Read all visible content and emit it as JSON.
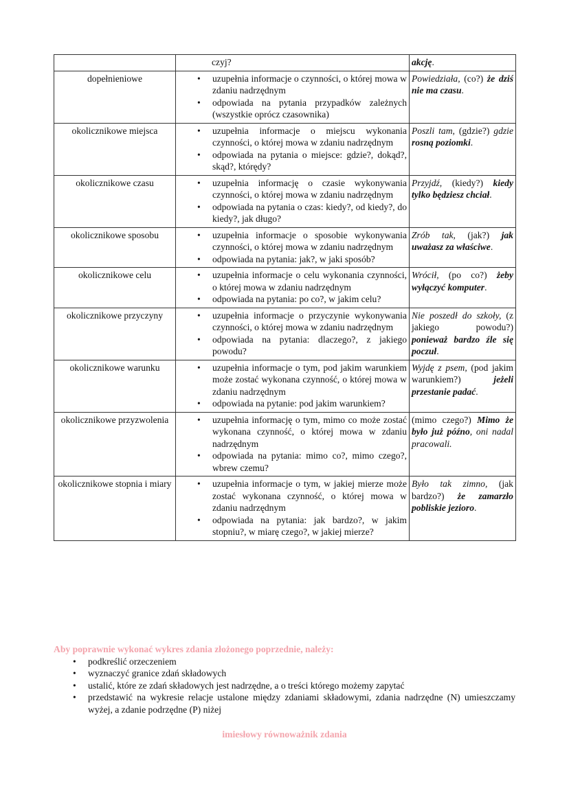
{
  "table": {
    "first_row": {
      "desc": "czyj?",
      "example": [
        {
          "t": "akcję",
          "s": "bi"
        },
        {
          "t": ".",
          "s": "n"
        }
      ]
    },
    "rows": [
      {
        "type": "dopełnieniowe",
        "bullets": [
          "uzupełnia informacje o czynności, o której mowa w zdaniu nadrzędnym",
          "odpowiada na pytania przypadków zależnych (wszystkie oprócz czasownika)"
        ],
        "example": [
          {
            "t": "Powiedziała,",
            "s": "i"
          },
          {
            "t": " (co?) ",
            "s": "n"
          },
          {
            "t": "że dziś nie ma czasu",
            "s": "bi"
          },
          {
            "t": ".",
            "s": "n"
          }
        ]
      },
      {
        "type": "okolicznikowe miejsca",
        "bullets": [
          "uzupełnia informacje o miejscu wykonania czynności, o której mowa w zdaniu nadrzędnym",
          "odpowiada na pytania o miejsce: gdzie?, dokąd?, skąd?, którędy?"
        ],
        "example": [
          {
            "t": "Poszli tam,",
            "s": "i"
          },
          {
            "t": " (gdzie?) ",
            "s": "n"
          },
          {
            "t": "gdzie ",
            "s": "i"
          },
          {
            "t": "rosną poziomki",
            "s": "bi"
          },
          {
            "t": ".",
            "s": "n"
          }
        ]
      },
      {
        "type": "okolicznikowe czasu",
        "bullets": [
          "uzupełnia informację o czasie wykonywania czynności, o której mowa w zdaniu nadrzędnym",
          "odpowiada na pytania o czas: kiedy?, od kiedy?, do kiedy?, jak długo?"
        ],
        "example": [
          {
            "t": "Przyjdź,",
            "s": "i"
          },
          {
            "t": " (kiedy?) ",
            "s": "n"
          },
          {
            "t": "kiedy tylko będziesz chciał",
            "s": "bi"
          },
          {
            "t": ".",
            "s": "n"
          }
        ]
      },
      {
        "type": "okolicznikowe sposobu",
        "bullets": [
          "uzupełnia informacje o sposobie wykonywania czynności, o której mowa w zdaniu nadrzędnym",
          "odpowiada na pytania: jak?, w jaki sposób?"
        ],
        "example": [
          {
            "t": "Zrób tak,",
            "s": "i"
          },
          {
            "t": " (jak?) ",
            "s": "n"
          },
          {
            "t": "jak uważasz za właściwe",
            "s": "bi"
          },
          {
            "t": ".",
            "s": "n"
          }
        ]
      },
      {
        "type": "okolicznikowe celu",
        "bullets": [
          "uzupełnia informacje o celu wykonania czynności, o której mowa w zdaniu nadrzędnym",
          "odpowiada na pytania: po co?, w jakim celu?"
        ],
        "example": [
          {
            "t": "Wrócił,",
            "s": "i"
          },
          {
            "t": " (po co?) ",
            "s": "n"
          },
          {
            "t": "żeby wyłączyć komputer",
            "s": "bi"
          },
          {
            "t": ".",
            "s": "n"
          }
        ]
      },
      {
        "type": "okolicznikowe przyczyny",
        "bullets": [
          "uzupełnia informacje o przyczynie wykonywania czynności, o której mowa w zdaniu nadrzędnym",
          "odpowiada na pytania: dlaczego?, z jakiego powodu?"
        ],
        "example": [
          {
            "t": "Nie poszedł do szkoły,",
            "s": "i"
          },
          {
            "t": " (z jakiego powodu?) ",
            "s": "n"
          },
          {
            "t": "ponieważ bardzo źle się poczuł",
            "s": "bi"
          },
          {
            "t": ".",
            "s": "n"
          }
        ]
      },
      {
        "type": "okolicznikowe warunku",
        "bullets": [
          "uzupełnia informacje o tym, pod jakim warunkiem może zostać wykonana czynność, o której mowa w zdaniu nadrzędnym",
          "odpowiada na pytanie: pod jakim warunkiem?"
        ],
        "example": [
          {
            "t": "Wyjdę z psem,",
            "s": "i"
          },
          {
            "t": " (pod jakim warunkiem?) ",
            "s": "n"
          },
          {
            "t": "jeżeli przestanie padać",
            "s": "bi"
          },
          {
            "t": ".",
            "s": "n"
          }
        ]
      },
      {
        "type": "okolicznikowe przyzwolenia",
        "bullets": [
          "uzupełnia informację o tym, mimo co może zostać wykonana czynność, o której mowa w zdaniu nadrzędnym",
          "odpowiada na pytania: mimo co?, mimo czego?, wbrew czemu?"
        ],
        "example": [
          {
            "t": "(mimo czego?) ",
            "s": "n"
          },
          {
            "t": "Mimo że było już późno",
            "s": "bi"
          },
          {
            "t": ", oni nadal pracowali.",
            "s": "i"
          }
        ]
      },
      {
        "type": "okolicznikowe stopnia i miary",
        "bullets": [
          "uzupełnia informacje o tym, w jakiej mierze może zostać wykonana czynność, o której mowa w zdaniu nadrzędnym",
          "odpowiada na pytania: jak bardzo?, w jakim stopniu?, w miarę czego?, w jakiej mierze?"
        ],
        "example": [
          {
            "t": "Było tak zimno,",
            "s": "i"
          },
          {
            "t": " (jak bardzo?) ",
            "s": "n"
          },
          {
            "t": "że zamarzło pobliskie jezioro",
            "s": "bi"
          },
          {
            "t": ".",
            "s": "n"
          }
        ]
      }
    ]
  },
  "instructions": {
    "heading": "Aby poprawnie wykonać wykres zdania złożonego poprzednie, należy:",
    "items": [
      "podkreślić orzeczeniem",
      "wyznaczyć granice zdań składowych",
      "ustalić, które ze zdań składowych jest nadrzędne, a o treści którego możemy zapytać",
      "przedstawić na wykresie relacje ustalone między zdaniami składowymi, zdania nadrzędne (N) umieszczamy wyżej, a zdanie podrzędne (P) niżej"
    ]
  },
  "next_section_title": "imiesłowy równoważnik zdania",
  "colors": {
    "heading_pink": "#f3a3ab",
    "border": "#333333"
  }
}
